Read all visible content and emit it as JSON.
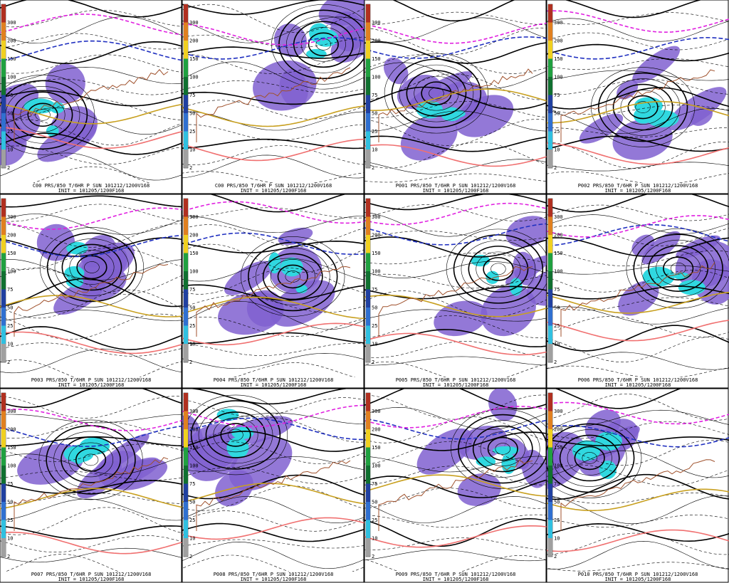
{
  "colorbar": {
    "labels": [
      "300",
      "200",
      "150",
      "100",
      "75",
      "50",
      "25",
      "10",
      "2"
    ],
    "colors": [
      "#b03020",
      "#e08020",
      "#f0d020",
      "#20a040",
      "#107030",
      "#2040a0",
      "#3070d0",
      "#30c0e0",
      "#a0a0a0"
    ]
  },
  "panels": [
    {
      "caption": "C00 PRS/850 T/6HR P SUN 101212/1200V168",
      "init": "INIT = 101205/1200F168"
    },
    {
      "caption": "C00 PRS/850 T/6HR P SUN 101212/1200V168",
      "init": "INIT = 101205/1200F168"
    },
    {
      "caption": "P001 PRS/850 T/6HR P SUN 101212/1200V168",
      "init": "INIT = 101205/1200F168"
    },
    {
      "caption": "P002 PRS/850 T/6HR P SUN 101212/1200V168",
      "init": "INIT = 101205/1200F168"
    },
    {
      "caption": "P003 PRS/850 T/6HR P SUN 101212/1200V168",
      "init": "INIT = 101205/1200F168"
    },
    {
      "caption": "P004 PRS/850 T/6HR P SUN 101212/1200V168",
      "init": "INIT = 101205/1200F168"
    },
    {
      "caption": "P005 PRS/850 T/6HR P SUN 101212/1200V168",
      "init": "INIT = 101205/1200F168"
    },
    {
      "caption": "P006 PRS/850 T/6HR P SUN 101212/1200V168",
      "init": "INIT = 101205/1200F168"
    },
    {
      "caption": "P007 PRS/850 T/6HR P SUN 101212/1200V168",
      "init": "INIT = 101205/1200F168"
    },
    {
      "caption": "P008 PRS/850 T/6HR P SUN 101212/1200V168",
      "init": "INIT = 101205/1200F168"
    },
    {
      "caption": "P009 PRS/850 T/6HR P SUN 101212/1200V168",
      "init": "INIT = 101205/1200F168"
    },
    {
      "caption": "P010 PRS/850 T/6HR P SUN 101212/1200V168",
      "init": "INIT = 101205/1200F168"
    }
  ]
}
